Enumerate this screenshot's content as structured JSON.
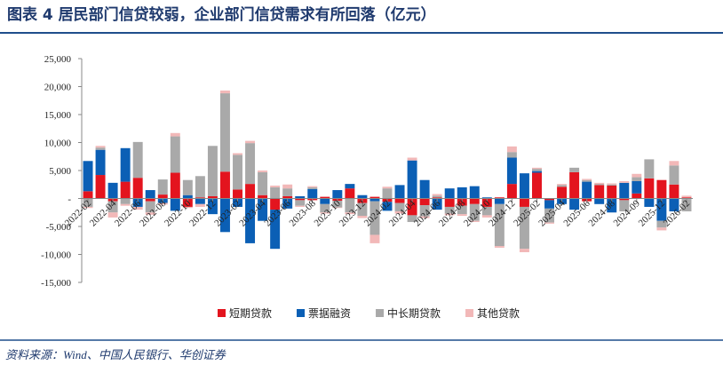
{
  "chart_data": {
    "type": "bar",
    "title": "图表 4   居民部门信贷较弱，企业部门信贷需求有所回落（亿元）",
    "source": "资料来源：Wind、中国人民银行、华创证券",
    "stacked": true,
    "categories": [
      "2022-02",
      null,
      "2022-04",
      null,
      "2022-06",
      null,
      "2022-08",
      null,
      "2022-10",
      null,
      "2022-12",
      null,
      "2023-02",
      null,
      "2023-04",
      null,
      "2023-06",
      null,
      "2023-08",
      null,
      "2023-10",
      null,
      "2023-12",
      null,
      "2024-02",
      null,
      "2024-04",
      null,
      "2024-06",
      null,
      "2024-08",
      null,
      "2024-10",
      null,
      "2024-12",
      null,
      "2025-02",
      null,
      "2025-04",
      null,
      "2025-06",
      null,
      "2024-08",
      null,
      "2024-09",
      null,
      "2025-12",
      null,
      "2026-02"
    ],
    "series": [
      {
        "name": "短期贷款",
        "color": "#e3141e",
        "values": [
          1300,
          4200,
          -500,
          3000,
          3700,
          -500,
          700,
          4600,
          -1500,
          200,
          400,
          4800,
          1600,
          2600,
          600,
          -2000,
          400,
          -300,
          -300,
          300,
          -400,
          1800,
          -800,
          300,
          -600,
          -800,
          -3000,
          -1200,
          200,
          -1500,
          -1300,
          -1000,
          -1500,
          200,
          2600,
          -1500,
          4600,
          -300,
          2100,
          4700,
          -500,
          2400,
          2300,
          -300,
          900,
          3600,
          3300,
          2500,
          200
        ]
      },
      {
        "name": "票据融资",
        "color": "#0b5fb5",
        "values": [
          5400,
          4500,
          2800,
          6000,
          -1500,
          1500,
          -800,
          -2200,
          600,
          -1000,
          -2800,
          -6000,
          -1500,
          -8000,
          -4000,
          -7000,
          -1800,
          400,
          1700,
          -1000,
          1500,
          800,
          600,
          -500,
          -1600,
          2400,
          6800,
          3300,
          -2000,
          1800,
          2000,
          2200,
          200,
          -1000,
          4700,
          4500,
          300,
          -1500,
          -1000,
          -2000,
          3000,
          -1000,
          -2500,
          2800,
          2200,
          -1500,
          -4000,
          -2300,
          -100
        ]
      },
      {
        "name": "中长期贷款",
        "color": "#a9a9a9",
        "values": [
          -1500,
          400,
          -2000,
          -1000,
          6400,
          -2000,
          2700,
          6500,
          2700,
          3800,
          9000,
          14000,
          6200,
          7300,
          4100,
          2000,
          1400,
          -1000,
          300,
          -1500,
          -1200,
          -2500,
          -2300,
          -6000,
          1800,
          -1500,
          -1200,
          -2000,
          300,
          -1200,
          -1500,
          -3000,
          -1500,
          -7500,
          1000,
          -7500,
          400,
          -2500,
          300,
          800,
          300,
          200,
          200,
          -2000,
          700,
          3400,
          -1200,
          3400,
          -2200
        ]
      },
      {
        "name": "其他贷款",
        "color": "#f2b8b8",
        "values": [
          -200,
          300,
          -900,
          -300,
          -500,
          -400,
          -300,
          600,
          -200,
          -500,
          0,
          500,
          300,
          400,
          300,
          300,
          700,
          -200,
          200,
          -200,
          -100,
          -300,
          -400,
          -1500,
          300,
          -400,
          500,
          -300,
          300,
          -300,
          -300,
          -200,
          -400,
          -300,
          1000,
          -600,
          200,
          -200,
          200,
          0,
          200,
          200,
          200,
          300,
          600,
          0,
          -500,
          800,
          300
        ]
      }
    ],
    "ylim": [
      -15000,
      25000
    ],
    "yticks": [
      {
        "value": -15000,
        "label": "-15,000"
      },
      {
        "value": -10000,
        "label": "-10,000"
      },
      {
        "value": -5000,
        "label": "-5,000"
      },
      {
        "value": 0,
        "label": "-"
      },
      {
        "value": 5000,
        "label": "5,000"
      },
      {
        "value": 10000,
        "label": "10,000"
      },
      {
        "value": 15000,
        "label": "15,000"
      },
      {
        "value": 20000,
        "label": "20,000"
      },
      {
        "value": 25000,
        "label": "25,000"
      }
    ],
    "legend": "bottom"
  }
}
